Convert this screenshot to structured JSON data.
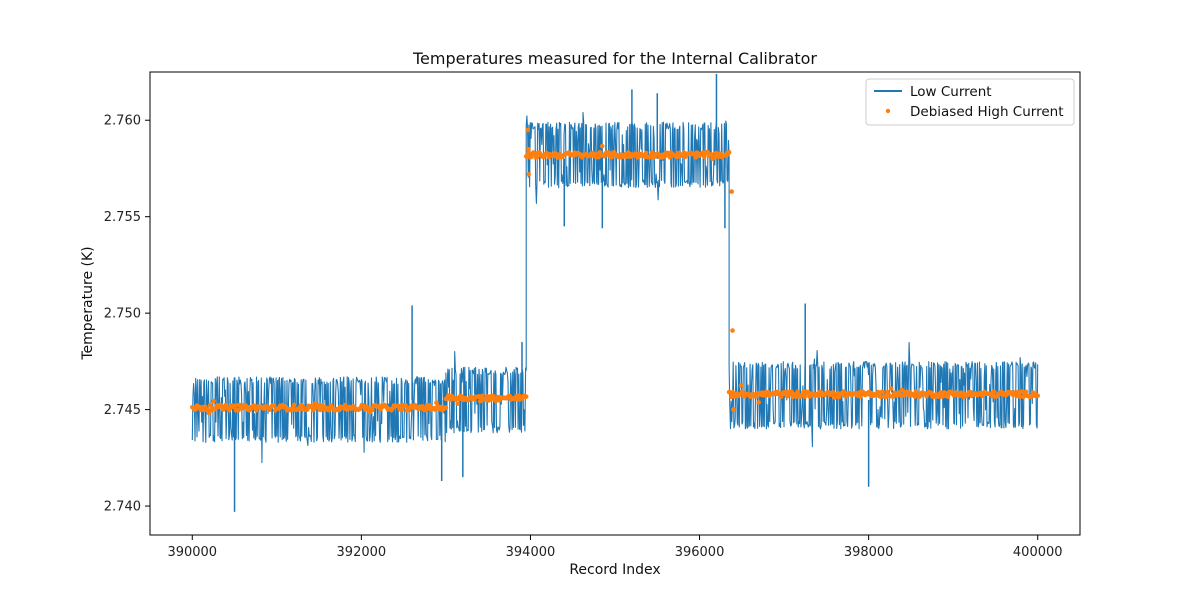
{
  "chart_data": {
    "type": "line",
    "title": "Temperatures measured for the Internal Calibrator",
    "xlabel": "Record Index",
    "ylabel": "Temperature (K)",
    "xlim": [
      389500,
      400500
    ],
    "ylim": [
      2.7385,
      2.7625
    ],
    "xticks": [
      390000,
      392000,
      394000,
      396000,
      398000,
      400000
    ],
    "xtick_labels": [
      "390000",
      "392000",
      "394000",
      "396000",
      "398000",
      "400000"
    ],
    "yticks": [
      2.74,
      2.745,
      2.75,
      2.755,
      2.76
    ],
    "ytick_labels": [
      "2.740",
      "2.745",
      "2.750",
      "2.755",
      "2.760"
    ],
    "grid": false,
    "legend_position": "top-right",
    "series": [
      {
        "name": "Low Current",
        "style": "line",
        "color": "#1f77b4",
        "segments": [
          {
            "x_start": 390000,
            "x_end": 393000,
            "level": 2.7451,
            "band_low": 2.7433,
            "band_high": 2.7467
          },
          {
            "x_start": 393000,
            "x_end": 393950,
            "level": 2.7455,
            "band_low": 2.7438,
            "band_high": 2.7472
          },
          {
            "x_start": 393950,
            "x_end": 396350,
            "level": 2.7581,
            "band_low": 2.7565,
            "band_high": 2.7599
          },
          {
            "x_start": 396350,
            "x_end": 400000,
            "level": 2.7457,
            "band_low": 2.744,
            "band_high": 2.7475
          }
        ],
        "extreme_points": [
          {
            "x": 390500,
            "y": 2.7397
          },
          {
            "x": 392600,
            "y": 2.7504
          },
          {
            "x": 392950,
            "y": 2.7413
          },
          {
            "x": 393200,
            "y": 2.7415
          },
          {
            "x": 393900,
            "y": 2.7485
          },
          {
            "x": 394400,
            "y": 2.7545
          },
          {
            "x": 394850,
            "y": 2.7544
          },
          {
            "x": 395200,
            "y": 2.7616
          },
          {
            "x": 395500,
            "y": 2.7614
          },
          {
            "x": 396200,
            "y": 2.7624
          },
          {
            "x": 396300,
            "y": 2.7544
          },
          {
            "x": 397250,
            "y": 2.7505
          },
          {
            "x": 398000,
            "y": 2.741
          }
        ]
      },
      {
        "name": "Debiased High Current",
        "style": "scatter",
        "color": "#ff7f0e",
        "segments": [
          {
            "x_start": 390000,
            "x_end": 393000,
            "level": 2.7451
          },
          {
            "x_start": 393000,
            "x_end": 393950,
            "level": 2.7456
          },
          {
            "x_start": 393950,
            "x_end": 396350,
            "level": 2.7582
          },
          {
            "x_start": 396350,
            "x_end": 400000,
            "level": 2.7458
          }
        ],
        "outlier_points": [
          {
            "x": 393970,
            "y": 2.7595
          },
          {
            "x": 393975,
            "y": 2.7585
          },
          {
            "x": 393980,
            "y": 2.7572
          },
          {
            "x": 396380,
            "y": 2.7563
          },
          {
            "x": 396390,
            "y": 2.7491
          },
          {
            "x": 396400,
            "y": 2.745
          }
        ]
      }
    ]
  }
}
